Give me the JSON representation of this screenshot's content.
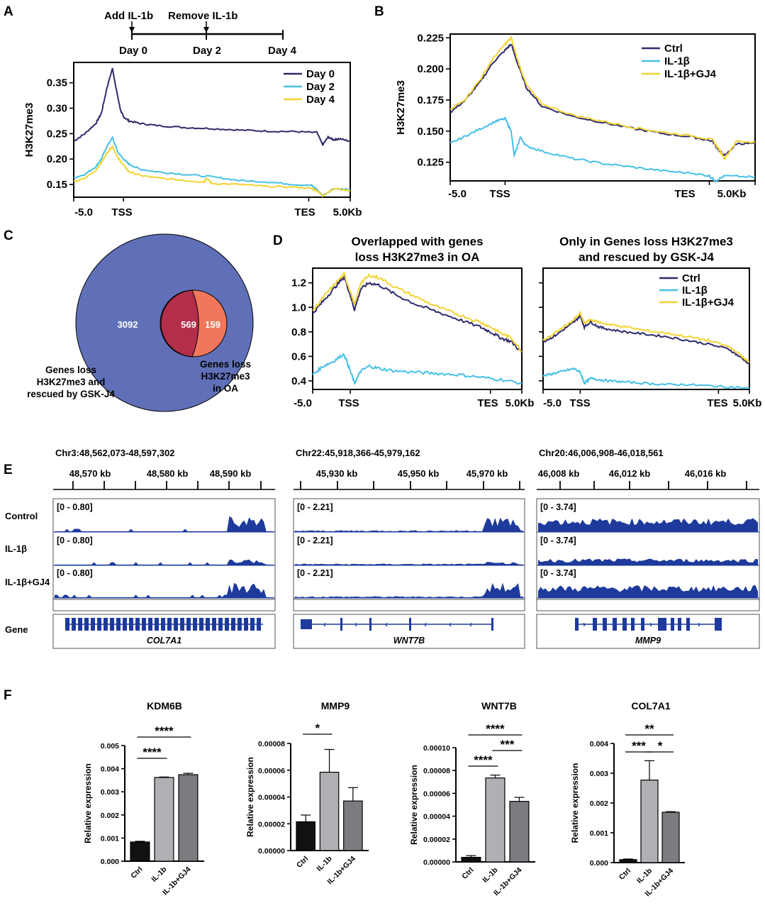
{
  "panel_labels": [
    "A",
    "B",
    "C",
    "D",
    "E",
    "F"
  ],
  "colors": {
    "ctrl": "#2e2b6b",
    "il1b": "#46c0e6",
    "gj4": "#f3d332",
    "venn_a": "#6070b8",
    "venn_b": "#f0775b",
    "venn_overlap": "#b32e4a",
    "track": "#1d3a9c",
    "bar_ctrl": "#111111",
    "bar_il1b": "#aeb0b3",
    "bar_gj4": "#7a7c80"
  },
  "timeline": {
    "labels": [
      "Add IL-1b",
      "Remove IL-1b"
    ],
    "days": [
      "Day 0",
      "Day 2",
      "Day 4"
    ]
  },
  "profile_x_ticks": [
    "-5.0",
    "TSS",
    "TES",
    "5.0Kb"
  ],
  "chart_data": [
    {
      "id": "A",
      "type": "line",
      "ylabel": "H3K27me3",
      "ylim": [
        0.125,
        0.39
      ],
      "yticks": [
        "0.15",
        "0.20",
        "0.25",
        "0.30",
        "0.35"
      ],
      "ytick_values": [
        0.15,
        0.2,
        0.25,
        0.3,
        0.35
      ],
      "x_categories": [
        "-5.0",
        "TSS",
        "TES",
        "5.0Kb"
      ],
      "series": [
        {
          "name": "Day 0",
          "color": "#2e2b6b",
          "x": [
            0,
            4,
            8,
            10,
            12,
            14,
            16,
            17,
            18,
            20,
            24,
            30,
            40,
            50,
            60,
            70,
            80,
            88,
            90,
            92,
            94,
            96,
            100
          ],
          "y": [
            0.235,
            0.25,
            0.27,
            0.29,
            0.34,
            0.378,
            0.32,
            0.295,
            0.283,
            0.275,
            0.27,
            0.266,
            0.262,
            0.26,
            0.257,
            0.255,
            0.254,
            0.252,
            0.228,
            0.243,
            0.238,
            0.24,
            0.235
          ]
        },
        {
          "name": "Day 2",
          "color": "#46c0e6",
          "x": [
            0,
            4,
            8,
            10,
            12,
            14,
            16,
            18,
            20,
            24,
            30,
            40,
            50,
            60,
            70,
            80,
            86,
            88,
            90,
            94,
            100
          ],
          "y": [
            0.163,
            0.17,
            0.185,
            0.2,
            0.225,
            0.242,
            0.213,
            0.2,
            0.19,
            0.18,
            0.175,
            0.17,
            0.165,
            0.158,
            0.155,
            0.15,
            0.148,
            0.14,
            0.128,
            0.142,
            0.14
          ]
        },
        {
          "name": "Day 4",
          "color": "#f3d332",
          "x": [
            0,
            4,
            8,
            10,
            12,
            14,
            16,
            18,
            20,
            24,
            30,
            40,
            47,
            48,
            50,
            60,
            70,
            80,
            86,
            88,
            90,
            94,
            100
          ],
          "y": [
            0.155,
            0.162,
            0.178,
            0.193,
            0.212,
            0.225,
            0.202,
            0.188,
            0.175,
            0.168,
            0.163,
            0.158,
            0.155,
            0.162,
            0.152,
            0.15,
            0.146,
            0.145,
            0.142,
            0.138,
            0.128,
            0.142,
            0.138
          ]
        }
      ]
    },
    {
      "id": "B",
      "type": "line",
      "ylabel": "H3K27me3",
      "ylim": [
        0.11,
        0.228
      ],
      "yticks": [
        "0.125",
        "0.150",
        "0.175",
        "0.200",
        "0.225"
      ],
      "ytick_values": [
        0.125,
        0.15,
        0.175,
        0.2,
        0.225
      ],
      "x_categories": [
        "-5.0",
        "TSS",
        "TES",
        "5.0Kb"
      ],
      "series": [
        {
          "name": "Ctrl",
          "color": "#2e2b6b",
          "x": [
            0,
            5,
            10,
            14,
            18,
            20,
            22,
            25,
            30,
            40,
            50,
            60,
            70,
            80,
            86,
            88,
            90,
            94,
            100
          ],
          "y": [
            0.165,
            0.175,
            0.19,
            0.205,
            0.215,
            0.22,
            0.205,
            0.185,
            0.17,
            0.162,
            0.157,
            0.152,
            0.148,
            0.145,
            0.142,
            0.135,
            0.13,
            0.14,
            0.14
          ]
        },
        {
          "name": "IL-1β",
          "color": "#46c0e6",
          "x": [
            0,
            5,
            10,
            15,
            18,
            20,
            21,
            23,
            25,
            30,
            40,
            50,
            60,
            70,
            80,
            85,
            87,
            90,
            100
          ],
          "y": [
            0.14,
            0.146,
            0.152,
            0.158,
            0.16,
            0.15,
            0.13,
            0.145,
            0.138,
            0.134,
            0.128,
            0.124,
            0.121,
            0.118,
            0.116,
            0.114,
            0.11,
            0.114,
            0.113
          ]
        },
        {
          "name": "IL-1β+GJ4",
          "color": "#f3d332",
          "x": [
            0,
            5,
            10,
            14,
            18,
            20,
            22,
            25,
            30,
            40,
            50,
            60,
            70,
            80,
            86,
            88,
            90,
            94,
            100
          ],
          "y": [
            0.167,
            0.176,
            0.192,
            0.208,
            0.22,
            0.225,
            0.208,
            0.187,
            0.172,
            0.163,
            0.158,
            0.153,
            0.149,
            0.146,
            0.143,
            0.136,
            0.128,
            0.142,
            0.141
          ]
        }
      ]
    },
    {
      "id": "D1",
      "type": "line",
      "title": [
        "Overlapped with genes",
        "loss H3K27me3 in OA"
      ],
      "ylim": [
        0.33,
        1.32
      ],
      "yticks": [
        "0.4",
        "0.6",
        "0.8",
        "1.0",
        "1.2"
      ],
      "ytick_values": [
        0.4,
        0.6,
        0.8,
        1.0,
        1.2
      ],
      "x_categories": [
        "-5.0",
        "TSS",
        "TES",
        "5.0Kb"
      ],
      "series": [
        {
          "name": "Ctrl",
          "color": "#2e2b6b",
          "x": [
            0,
            5,
            10,
            15,
            18,
            20,
            23,
            27,
            32,
            40,
            50,
            60,
            70,
            80,
            85,
            90,
            95,
            100
          ],
          "y": [
            0.95,
            1.05,
            1.15,
            1.25,
            1.1,
            0.98,
            1.15,
            1.2,
            1.18,
            1.1,
            1.02,
            0.96,
            0.9,
            0.84,
            0.8,
            0.75,
            0.72,
            0.63
          ]
        },
        {
          "name": "IL-1β",
          "color": "#46c0e6",
          "x": [
            0,
            5,
            10,
            15,
            18,
            20,
            23,
            27,
            32,
            40,
            50,
            60,
            70,
            80,
            90,
            100
          ],
          "y": [
            0.45,
            0.52,
            0.56,
            0.62,
            0.48,
            0.38,
            0.48,
            0.52,
            0.5,
            0.48,
            0.47,
            0.46,
            0.45,
            0.43,
            0.41,
            0.38
          ]
        },
        {
          "name": "IL-1β+GJ4",
          "color": "#f3d332",
          "x": [
            0,
            5,
            10,
            15,
            18,
            20,
            23,
            27,
            32,
            40,
            50,
            60,
            70,
            80,
            85,
            90,
            95,
            100
          ],
          "y": [
            0.97,
            1.08,
            1.18,
            1.27,
            1.13,
            1.02,
            1.2,
            1.26,
            1.24,
            1.16,
            1.08,
            1.0,
            0.94,
            0.88,
            0.84,
            0.79,
            0.75,
            0.64
          ]
        }
      ]
    },
    {
      "id": "D2",
      "type": "line",
      "title": [
        "Only in Genes loss H3K27me3",
        "and rescued by GSK-J4"
      ],
      "ylim": [
        0.33,
        1.32
      ],
      "x_categories": [
        "-5.0",
        "TSS",
        "TES",
        "5.0Kb"
      ],
      "series": [
        {
          "name": "Ctrl",
          "color": "#2e2b6b",
          "x": [
            0,
            5,
            10,
            15,
            18,
            20,
            23,
            27,
            32,
            40,
            50,
            60,
            70,
            80,
            90,
            95,
            100
          ],
          "y": [
            0.72,
            0.76,
            0.82,
            0.88,
            0.93,
            0.84,
            0.88,
            0.84,
            0.82,
            0.8,
            0.78,
            0.76,
            0.73,
            0.7,
            0.66,
            0.6,
            0.54
          ]
        },
        {
          "name": "IL-1β",
          "color": "#46c0e6",
          "x": [
            0,
            5,
            10,
            15,
            18,
            20,
            23,
            27,
            32,
            40,
            50,
            60,
            70,
            80,
            90,
            100
          ],
          "y": [
            0.44,
            0.46,
            0.48,
            0.5,
            0.47,
            0.38,
            0.42,
            0.41,
            0.4,
            0.39,
            0.38,
            0.37,
            0.37,
            0.36,
            0.35,
            0.34
          ]
        },
        {
          "name": "IL-1β+GJ4",
          "color": "#f3d332",
          "x": [
            0,
            5,
            10,
            15,
            18,
            20,
            23,
            27,
            32,
            40,
            50,
            60,
            70,
            80,
            90,
            95,
            100
          ],
          "y": [
            0.73,
            0.78,
            0.84,
            0.9,
            0.95,
            0.87,
            0.9,
            0.88,
            0.86,
            0.84,
            0.81,
            0.79,
            0.76,
            0.73,
            0.68,
            0.62,
            0.55
          ]
        }
      ]
    },
    {
      "id": "F1",
      "type": "bar",
      "title": "KDM6B",
      "ylabel": "Relative expression",
      "categories": [
        "Ctrl",
        "IL-1b",
        "IL-1b+GJ4"
      ],
      "values": [
        0.00083,
        0.00362,
        0.00374
      ],
      "errors": [
        3e-05,
        2e-05,
        6e-05
      ],
      "ylim": [
        0,
        0.005
      ],
      "yticks": [
        "0.000",
        "0.001",
        "0.002",
        "0.003",
        "0.004",
        "0.005"
      ],
      "ytick_values": [
        0,
        0.001,
        0.002,
        0.003,
        0.004,
        0.005
      ],
      "significance": [
        {
          "from": 0,
          "to": 1,
          "label": "****"
        },
        {
          "from": 0,
          "to": 2,
          "label": "****"
        }
      ]
    },
    {
      "id": "F2",
      "type": "bar",
      "title": "MMP9",
      "ylabel": "Relative expression",
      "categories": [
        "Ctrl",
        "IL-1b",
        "IL-1b+GJ4"
      ],
      "values": [
        2.15e-05,
        5.85e-05,
        3.7e-05
      ],
      "errors": [
        5e-06,
        1.7e-05,
        1e-05
      ],
      "ylim": [
        0,
        8e-05
      ],
      "yticks": [
        "0.00000",
        "0.00002",
        "0.00004",
        "0.00006",
        "0.00008"
      ],
      "ytick_values": [
        0,
        2e-05,
        4e-05,
        6e-05,
        8e-05
      ],
      "significance": [
        {
          "from": 0,
          "to": 1,
          "label": "*"
        }
      ]
    },
    {
      "id": "F3",
      "type": "bar",
      "title": "WNT7B",
      "ylabel": "Relative expression",
      "categories": [
        "Ctrl",
        "IL-1b",
        "IL-1b+GJ4"
      ],
      "values": [
        4e-06,
        7.35e-05,
        5.3e-05
      ],
      "errors": [
        1.5e-06,
        2.5e-06,
        3.5e-06
      ],
      "ylim": [
        0,
        0.0001
      ],
      "yticks": [
        "0.00000",
        "0.00002",
        "0.00004",
        "0.00006",
        "0.00008",
        "0.00010"
      ],
      "ytick_values": [
        0,
        2e-05,
        4e-05,
        6e-05,
        8e-05,
        0.0001
      ],
      "significance": [
        {
          "from": 0,
          "to": 1,
          "label": "****"
        },
        {
          "from": 1,
          "to": 2,
          "label": "***"
        },
        {
          "from": 0,
          "to": 2,
          "label": "****"
        }
      ]
    },
    {
      "id": "F4",
      "type": "bar",
      "title": "COL7A1",
      "ylabel": "Relative expression",
      "categories": [
        "Ctrl",
        "IL-1b",
        "IL-1b+GJ4"
      ],
      "values": [
        0.0001,
        0.00277,
        0.00169
      ],
      "errors": [
        2e-05,
        0.00065,
        2e-05
      ],
      "ylim": [
        0,
        0.004
      ],
      "yticks": [
        "0.000",
        "0.001",
        "0.002",
        "0.003",
        "0.004"
      ],
      "ytick_values": [
        0,
        0.001,
        0.002,
        0.003,
        0.004
      ],
      "significance": [
        {
          "from": 0,
          "to": 1,
          "label": "***"
        },
        {
          "from": 1,
          "to": 2,
          "label": "*"
        },
        {
          "from": 0,
          "to": 2,
          "label": "**"
        }
      ]
    }
  ],
  "venn": {
    "left_only": "3092",
    "overlap": "569",
    "right_only": "159",
    "left_label": [
      "Genes loss",
      "H3K27me3 and",
      "rescued by GSK-J4"
    ],
    "right_label": [
      "Genes loss",
      "H3K27me3",
      "in OA"
    ]
  },
  "tracks": {
    "row_labels": [
      "Control",
      "IL-1β",
      "IL-1β+GJ4",
      "Gene"
    ],
    "loci": [
      {
        "coords": "Chr3:48,562,073-48,597,302",
        "ticks": [
          "48,570 kb",
          "48,580 kb",
          "48,590 kb"
        ],
        "range": "[0 - 0.80]",
        "gene": "COL7A1"
      },
      {
        "coords": "Chr22:45,918,366-45,979,162",
        "ticks": [
          "45,930 kb",
          "45,950 kb",
          "45,970 kb"
        ],
        "range": "[0 - 2.21]",
        "gene": "WNT7B"
      },
      {
        "coords": "Chr20:46,006,908-46,018,561",
        "ticks": [
          "46,008 kb",
          "46,012 kb",
          "46,016 kb"
        ],
        "range": "[0 - 3.74]",
        "gene": "MMP9"
      }
    ]
  }
}
